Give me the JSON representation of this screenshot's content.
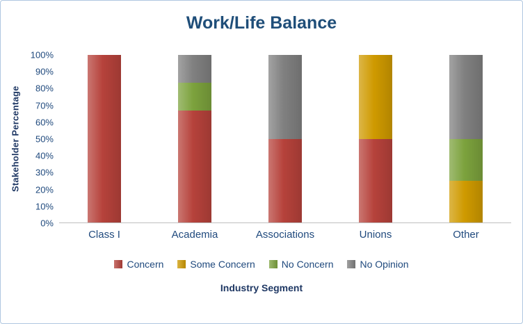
{
  "frame": {
    "border_color": "#AFC6E0"
  },
  "chart_data": {
    "type": "bar",
    "subtype": "stacked-100",
    "title": "Work/Life Balance",
    "title_color": "#1F4E79",
    "ylabel": "Stakeholder Percentage",
    "xlabel": "Industry Segment",
    "axis_text_color": "#1F497D",
    "axis_title_color": "#1F3864",
    "grid": false,
    "legend_position": "bottom",
    "ylim": [
      0,
      100
    ],
    "y_ticks": [
      "0%",
      "10%",
      "20%",
      "30%",
      "40%",
      "50%",
      "60%",
      "70%",
      "80%",
      "90%",
      "100%"
    ],
    "categories": [
      "Class I",
      "Academia",
      "Associations",
      "Unions",
      "Other"
    ],
    "series": [
      {
        "name": "Concern",
        "color": "#B6423B",
        "values": [
          100,
          66.7,
          50,
          50,
          0
        ]
      },
      {
        "name": "Some Concern",
        "color": "#CF9A00",
        "values": [
          0,
          0,
          0,
          50,
          25
        ]
      },
      {
        "name": "No Concern",
        "color": "#7CA23D",
        "values": [
          0,
          16.6,
          0,
          0,
          25
        ]
      },
      {
        "name": "No Opinion",
        "color": "#808080",
        "values": [
          0,
          16.7,
          50,
          0,
          50
        ]
      }
    ]
  }
}
